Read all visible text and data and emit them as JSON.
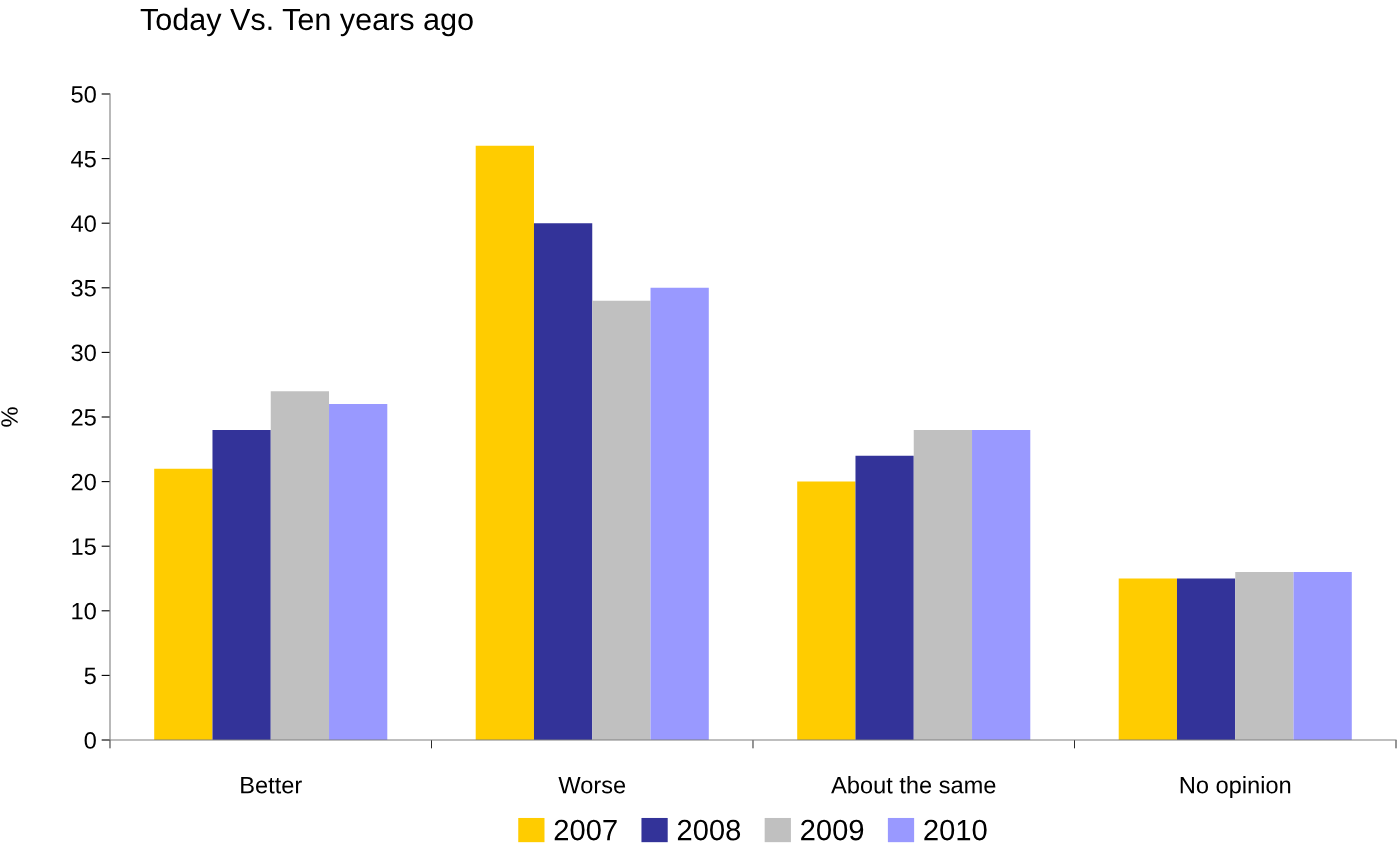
{
  "chart_data": {
    "type": "bar",
    "title": "Today Vs. Ten years ago",
    "ylabel": "%",
    "categories": [
      "Better",
      "Worse",
      "About the same",
      "No opinion"
    ],
    "series": [
      {
        "name": "2007",
        "color": "#ffcc00",
        "values": [
          21,
          46,
          20,
          12.5
        ]
      },
      {
        "name": "2008",
        "color": "#333399",
        "values": [
          24,
          40,
          22,
          12.5
        ]
      },
      {
        "name": "2009",
        "color": "#c0c0c0",
        "values": [
          27,
          34,
          24,
          13
        ]
      },
      {
        "name": "2010",
        "color": "#9999ff",
        "values": [
          26,
          35,
          24,
          13
        ]
      }
    ],
    "ylim": [
      0,
      50
    ],
    "yticks": [
      0,
      5,
      10,
      15,
      20,
      25,
      30,
      35,
      40,
      45,
      50
    ],
    "grid": false,
    "legend": "bottom"
  }
}
